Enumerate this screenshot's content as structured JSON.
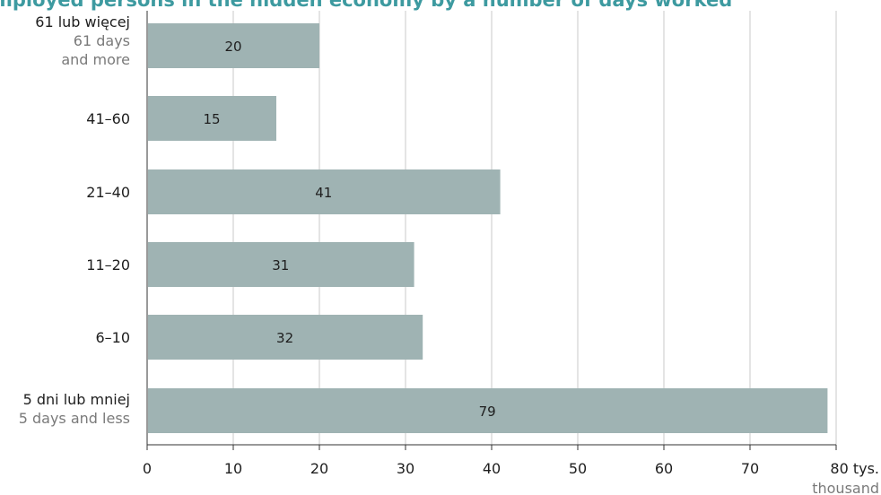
{
  "chart_data": {
    "type": "bar",
    "orientation": "horizontal",
    "title": "mployed persons in the hidden economy by a number of days worked",
    "categories": [
      {
        "label": "61 lub więcej",
        "sublabel": "61 days and more"
      },
      {
        "label": "41–60",
        "sublabel": ""
      },
      {
        "label": "21–40",
        "sublabel": ""
      },
      {
        "label": "11–20",
        "sublabel": ""
      },
      {
        "label": "6–10",
        "sublabel": ""
      },
      {
        "label": "5 dni lub mniej",
        "sublabel": "5 days and less"
      }
    ],
    "values": [
      20,
      15,
      41,
      31,
      32,
      79
    ],
    "data_labels": [
      "20",
      "15",
      "41",
      "31",
      "32",
      "79"
    ],
    "xlim": [
      0,
      80
    ],
    "x_ticks": [
      {
        "value": 0,
        "label": "0"
      },
      {
        "value": 10,
        "label": "10"
      },
      {
        "value": 20,
        "label": "20"
      },
      {
        "value": 30,
        "label": "30"
      },
      {
        "value": 40,
        "label": "40"
      },
      {
        "value": 50,
        "label": "50"
      },
      {
        "value": 60,
        "label": "60"
      },
      {
        "value": 70,
        "label": "70"
      },
      {
        "value": 80,
        "label": "80 tys."
      }
    ],
    "x_unit_sublabel": "thousand",
    "grid": true,
    "colors": {
      "bar": "#9fb3b3",
      "title": "#3d9aa0",
      "sublabel": "#7a7a7a"
    }
  }
}
